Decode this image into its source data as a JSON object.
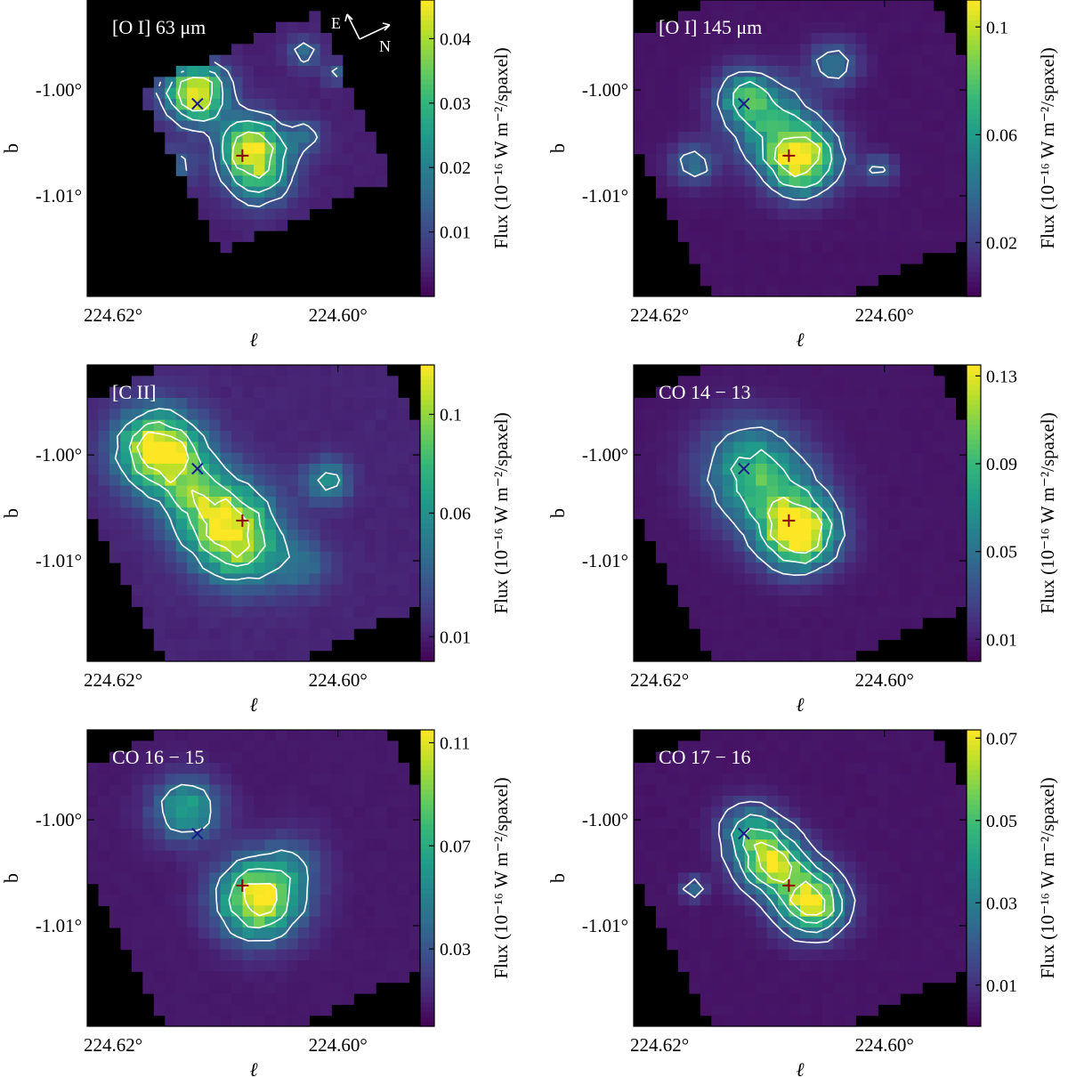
{
  "figure": {
    "colormap": [
      "#440154",
      "#482878",
      "#3e4a89",
      "#31688e",
      "#26828e",
      "#1f9e89",
      "#35b779",
      "#6ece58",
      "#b5de2b",
      "#fde725"
    ],
    "contour_color": "#ffffff",
    "masked_color": "#000000",
    "markers": {
      "cross_x": {
        "l": 224.6125,
        "b": -1.0013,
        "color": "#1a1a8c",
        "symbol": "x"
      },
      "plus": {
        "l": 224.6085,
        "b": -1.0062,
        "color": "#8b0000",
        "symbol": "+"
      }
    },
    "compass": {
      "east_label": "E",
      "north_label": "N"
    }
  },
  "chart_data": [
    {
      "type": "heatmap",
      "title": "[O I] 63 μm",
      "xlabel": "ℓ",
      "ylabel": "b",
      "xlim": [
        224.6223,
        224.5927
      ],
      "ylim": [
        -1.0195,
        -0.9915
      ],
      "xticks": [
        "224.62°",
        "224.60°"
      ],
      "xtick_values": [
        224.62,
        224.6
      ],
      "yticks": [
        "-1.00°",
        "-1.01°"
      ],
      "ytick_values": [
        -1.0,
        -1.01
      ],
      "colorbar": {
        "label": "Flux (10⁻¹⁶ W m⁻²/spaxel)",
        "range": [
          0.0,
          0.046
        ],
        "ticks": [
          "0.01",
          "0.02",
          "0.03",
          "0.04"
        ],
        "tick_values": [
          0.01,
          0.02,
          0.03,
          0.04
        ]
      },
      "footprint": {
        "center": [
          224.6063,
          -1.004
        ],
        "half_width": 0.0085,
        "angle_deg": 25
      },
      "background": 0.004,
      "sources": [
        {
          "l": 224.6126,
          "b": -1.0003,
          "peak": 0.046,
          "sigma": 0.0018
        },
        {
          "l": 224.6078,
          "b": -1.0052,
          "peak": 0.038,
          "sigma": 0.0018
        },
        {
          "l": 224.607,
          "b": -1.008,
          "peak": 0.022,
          "sigma": 0.002
        },
        {
          "l": 224.6145,
          "b": -1.007,
          "peak": 0.012,
          "sigma": 0.0012
        },
        {
          "l": 224.603,
          "b": -1.0045,
          "peak": 0.011,
          "sigma": 0.0012
        },
        {
          "l": 224.616,
          "b": -1.009,
          "peak": 0.011,
          "sigma": 0.0012
        },
        {
          "l": 224.603,
          "b": -0.9965,
          "peak": 0.012,
          "sigma": 0.001
        },
        {
          "l": 224.6002,
          "b": -0.9985,
          "peak": 0.01,
          "sigma": 0.0008
        }
      ],
      "contours": [
        0.012,
        0.022,
        0.034
      ],
      "compass": true
    },
    {
      "type": "heatmap",
      "title": "[O I] 145 μm",
      "xlabel": "ℓ",
      "ylabel": "b",
      "xlim": [
        224.6223,
        224.5927
      ],
      "ylim": [
        -1.0195,
        -0.9915
      ],
      "xticks": [
        "224.62°",
        "224.60°"
      ],
      "xtick_values": [
        224.62,
        224.6
      ],
      "yticks": [
        "-1.00°",
        "-1.01°"
      ],
      "ytick_values": [
        -1.0,
        -1.01
      ],
      "colorbar": {
        "label": "Flux (10⁻¹⁶ W m⁻²/spaxel)",
        "range": [
          0.0,
          0.11
        ],
        "ticks": [
          "0.02",
          "0.06",
          "0.1"
        ],
        "tick_values": [
          0.02,
          0.06,
          0.1
        ]
      },
      "footprint": {
        "center": [
          224.6063,
          -1.004
        ],
        "half_width": 0.015,
        "angle_deg": 25
      },
      "background": 0.006,
      "sources": [
        {
          "l": 224.6075,
          "b": -1.0065,
          "peak": 0.11,
          "sigma": 0.0022
        },
        {
          "l": 224.6105,
          "b": -1.0025,
          "peak": 0.05,
          "sigma": 0.0025
        },
        {
          "l": 224.6125,
          "b": -1.0005,
          "peak": 0.045,
          "sigma": 0.0016
        },
        {
          "l": 224.617,
          "b": -1.007,
          "peak": 0.035,
          "sigma": 0.0014
        },
        {
          "l": 224.6045,
          "b": -0.9975,
          "peak": 0.035,
          "sigma": 0.0015
        },
        {
          "l": 224.6005,
          "b": -1.0075,
          "peak": 0.03,
          "sigma": 0.001
        }
      ],
      "contours": [
        0.03,
        0.06,
        0.09
      ],
      "compass": false
    },
    {
      "type": "heatmap",
      "title": "[C II]",
      "xlabel": "ℓ",
      "ylabel": "b",
      "xlim": [
        224.6223,
        224.5927
      ],
      "ylim": [
        -1.0195,
        -0.9915
      ],
      "xticks": [
        "224.62°",
        "224.60°"
      ],
      "xtick_values": [
        224.62,
        224.6
      ],
      "yticks": [
        "-1.00°",
        "-1.01°"
      ],
      "ytick_values": [
        -1.0,
        -1.01
      ],
      "colorbar": {
        "label": "Flux (10⁻¹⁶ W m⁻²/spaxel)",
        "range": [
          0.0,
          0.12
        ],
        "ticks": [
          "0.01",
          "0.06",
          "0.1"
        ],
        "tick_values": [
          0.01,
          0.06,
          0.1
        ]
      },
      "footprint": {
        "center": [
          224.6063,
          -1.004
        ],
        "half_width": 0.015,
        "angle_deg": 25
      },
      "background": 0.012,
      "sources": [
        {
          "l": 224.616,
          "b": -0.9995,
          "peak": 0.115,
          "sigma": 0.0025
        },
        {
          "l": 224.61,
          "b": -1.0065,
          "peak": 0.095,
          "sigma": 0.0028
        },
        {
          "l": 224.613,
          "b": -1.003,
          "peak": 0.04,
          "sigma": 0.0025
        },
        {
          "l": 224.608,
          "b": -1.0095,
          "peak": 0.04,
          "sigma": 0.0025
        },
        {
          "l": 224.603,
          "b": -1.0105,
          "peak": 0.025,
          "sigma": 0.0018
        },
        {
          "l": 224.601,
          "b": -1.0025,
          "peak": 0.05,
          "sigma": 0.0014
        }
      ],
      "contours": [
        0.05,
        0.08,
        0.105
      ],
      "compass": false
    },
    {
      "type": "heatmap",
      "title": "CO 14 − 13",
      "xlabel": "ℓ",
      "ylabel": "b",
      "xlim": [
        224.6223,
        224.5927
      ],
      "ylim": [
        -1.0195,
        -0.9915
      ],
      "xticks": [
        "224.62°",
        "224.60°"
      ],
      "xtick_values": [
        224.62,
        224.6
      ],
      "yticks": [
        "-1.00°",
        "-1.01°"
      ],
      "ytick_values": [
        -1.0,
        -1.01
      ],
      "colorbar": {
        "label": "Flux (10⁻¹⁶ W m⁻²/spaxel)",
        "range": [
          0.0,
          0.135
        ],
        "ticks": [
          "0.01",
          "0.05",
          "0.09",
          "0.13"
        ],
        "tick_values": [
          0.01,
          0.05,
          0.09,
          0.13
        ]
      },
      "footprint": {
        "center": [
          224.6063,
          -1.004
        ],
        "half_width": 0.015,
        "angle_deg": 25
      },
      "background": 0.008,
      "sources": [
        {
          "l": 224.6075,
          "b": -1.0075,
          "peak": 0.13,
          "sigma": 0.0022
        },
        {
          "l": 224.612,
          "b": -1.001,
          "peak": 0.06,
          "sigma": 0.003
        },
        {
          "l": 224.6095,
          "b": -1.0045,
          "peak": 0.05,
          "sigma": 0.003
        }
      ],
      "contours": [
        0.04,
        0.075,
        0.11
      ],
      "compass": false
    },
    {
      "type": "heatmap",
      "title": "CO 16 − 15",
      "xlabel": "ℓ",
      "ylabel": "b",
      "xlim": [
        224.6223,
        224.5927
      ],
      "ylim": [
        -1.0195,
        -0.9915
      ],
      "xticks": [
        "224.62°",
        "224.60°"
      ],
      "xtick_values": [
        224.62,
        224.6
      ],
      "yticks": [
        "-1.00°",
        "-1.01°"
      ],
      "ytick_values": [
        -1.0,
        -1.01
      ],
      "colorbar": {
        "label": "Flux (10⁻¹⁶ W m⁻²/spaxel)",
        "range": [
          0.0,
          0.115
        ],
        "ticks": [
          "0.03",
          "0.07",
          "0.11"
        ],
        "tick_values": [
          0.03,
          0.07,
          0.11
        ]
      },
      "footprint": {
        "center": [
          224.6063,
          -1.004
        ],
        "half_width": 0.015,
        "angle_deg": 25
      },
      "background": 0.008,
      "sources": [
        {
          "l": 224.607,
          "b": -1.0075,
          "peak": 0.11,
          "sigma": 0.0025
        },
        {
          "l": 224.6135,
          "b": -0.999,
          "peak": 0.06,
          "sigma": 0.002
        },
        {
          "l": 224.604,
          "b": -1.004,
          "peak": 0.02,
          "sigma": 0.002
        }
      ],
      "contours": [
        0.04,
        0.07,
        0.1
      ],
      "compass": false
    },
    {
      "type": "heatmap",
      "title": "CO 17 − 16",
      "xlabel": "ℓ",
      "ylabel": "b",
      "xlim": [
        224.6223,
        224.5927
      ],
      "ylim": [
        -1.0195,
        -0.9915
      ],
      "xticks": [
        "224.62°",
        "224.60°"
      ],
      "xtick_values": [
        224.62,
        224.6
      ],
      "yticks": [
        "-1.00°",
        "-1.01°"
      ],
      "ytick_values": [
        -1.0,
        -1.01
      ],
      "colorbar": {
        "label": "Flux (10⁻¹⁶ W m⁻²/spaxel)",
        "range": [
          0.0,
          0.072
        ],
        "ticks": [
          "0.01",
          "0.03",
          "0.05",
          "0.07"
        ],
        "tick_values": [
          0.01,
          0.03,
          0.05,
          0.07
        ]
      },
      "footprint": {
        "center": [
          224.6063,
          -1.004
        ],
        "half_width": 0.015,
        "angle_deg": 25
      },
      "background": 0.004,
      "sources": [
        {
          "l": 224.6065,
          "b": -1.0078,
          "peak": 0.07,
          "sigma": 0.002
        },
        {
          "l": 224.61,
          "b": -1.004,
          "peak": 0.06,
          "sigma": 0.002
        },
        {
          "l": 224.612,
          "b": -1.001,
          "peak": 0.03,
          "sigma": 0.0018
        },
        {
          "l": 224.617,
          "b": -1.0065,
          "peak": 0.02,
          "sigma": 0.0008
        }
      ],
      "contours": [
        0.015,
        0.03,
        0.045,
        0.06
      ],
      "compass": false
    }
  ]
}
